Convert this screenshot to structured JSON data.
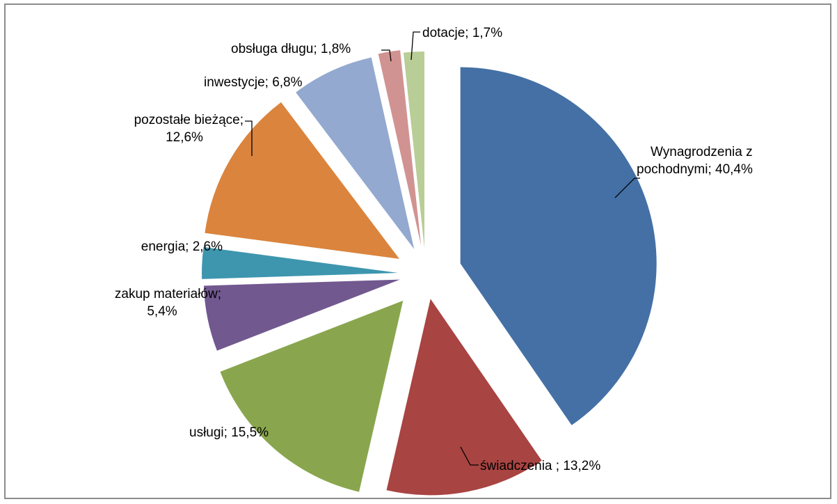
{
  "chart_data": {
    "type": "pie",
    "exploded": true,
    "title": "",
    "legend": "none",
    "slices": [
      {
        "category": "Wynagrodzenia z pochodnymi",
        "value": 40.4,
        "color": "#4470a5",
        "label_lines": [
          "Wynagrodzenia z",
          "pochodnymi; 40,4%"
        ]
      },
      {
        "category": "świadczenia",
        "value": 13.2,
        "color": "#a84442",
        "label_lines": [
          "świadczenia ; 13,2%"
        ]
      },
      {
        "category": "usługi",
        "value": 15.5,
        "color": "#89a64e",
        "label_lines": [
          "usługi; 15,5%"
        ]
      },
      {
        "category": "zakup materiałów",
        "value": 5.4,
        "color": "#71588f",
        "label_lines": [
          "zakup materiałów;",
          "5,4%"
        ]
      },
      {
        "category": "energia",
        "value": 2.6,
        "color": "#3d96ae",
        "label_lines": [
          "energia; 2,6%"
        ]
      },
      {
        "category": "pozostałe bieżące",
        "value": 12.6,
        "color": "#db843d",
        "label_lines": [
          "pozostałe bieżące;",
          "12,6%"
        ]
      },
      {
        "category": "inwestycje",
        "value": 6.8,
        "color": "#93a9cf",
        "label_lines": [
          "inwestycje; 6,8%"
        ]
      },
      {
        "category": "obsługa długu",
        "value": 1.8,
        "color": "#d19392",
        "label_lines": [
          "obsługa długu; 1,8%"
        ]
      },
      {
        "category": "dotacje",
        "value": 1.7,
        "color": "#b9cd96",
        "label_lines": [
          "dotacje; 1,7%"
        ]
      }
    ]
  }
}
